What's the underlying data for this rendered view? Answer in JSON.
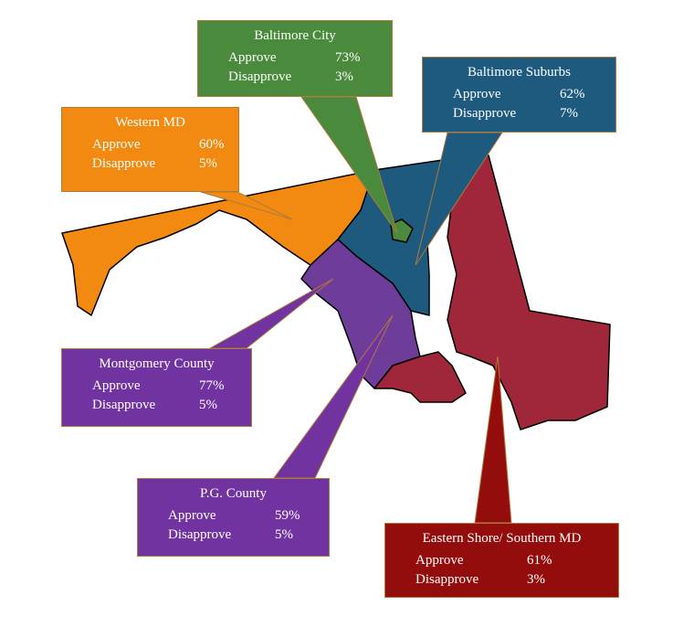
{
  "regions": [
    {
      "name": "Western MD",
      "rows": [
        {
          "label": "Approve",
          "value": "60%"
        },
        {
          "label": "Disapprove",
          "value": "5%"
        }
      ]
    },
    {
      "name": "Baltimore City",
      "rows": [
        {
          "label": "Approve",
          "value": "73%"
        },
        {
          "label": "Disapprove",
          "value": "3%"
        }
      ]
    },
    {
      "name": "Baltimore Suburbs",
      "rows": [
        {
          "label": "Approve",
          "value": "62%"
        },
        {
          "label": "Disapprove",
          "value": "7%"
        }
      ]
    },
    {
      "name": "Montgomery County",
      "rows": [
        {
          "label": "Approve",
          "value": "77%"
        },
        {
          "label": "Disapprove",
          "value": "5%"
        }
      ]
    },
    {
      "name": "P.G. County",
      "rows": [
        {
          "label": "Approve",
          "value": "59%"
        },
        {
          "label": "Disapprove",
          "value": "5%"
        }
      ]
    },
    {
      "name": "Eastern Shore/ Southern MD",
      "rows": [
        {
          "label": "Approve",
          "value": "61%"
        },
        {
          "label": "Disapprove",
          "value": "3%"
        }
      ]
    }
  ]
}
